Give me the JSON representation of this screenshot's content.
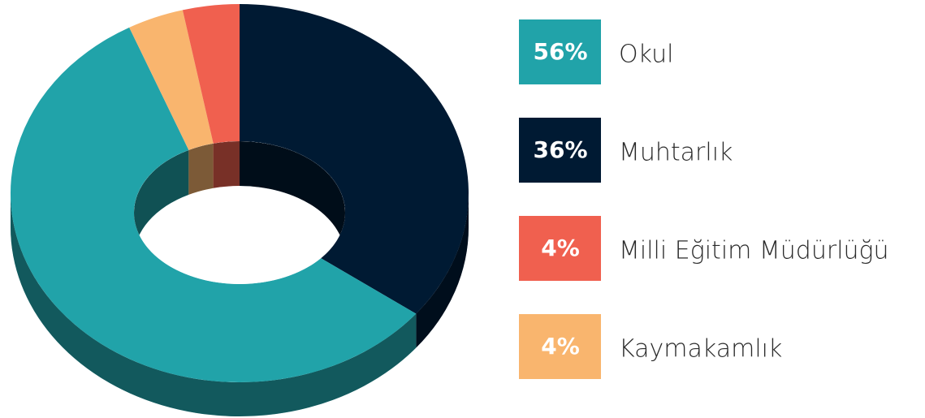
{
  "chart_data": {
    "type": "pie",
    "donut": true,
    "categories": [
      "Okul",
      "Muhtarlık",
      "Milli Eğitim Müdürlüğü",
      "Kaymakamlık"
    ],
    "values": [
      56,
      36,
      4,
      4
    ],
    "value_labels": [
      "56%",
      "36%",
      "4%",
      "4%"
    ],
    "colors": [
      "#21a3a9",
      "#001a33",
      "#f0604f",
      "#f9b56e"
    ]
  }
}
